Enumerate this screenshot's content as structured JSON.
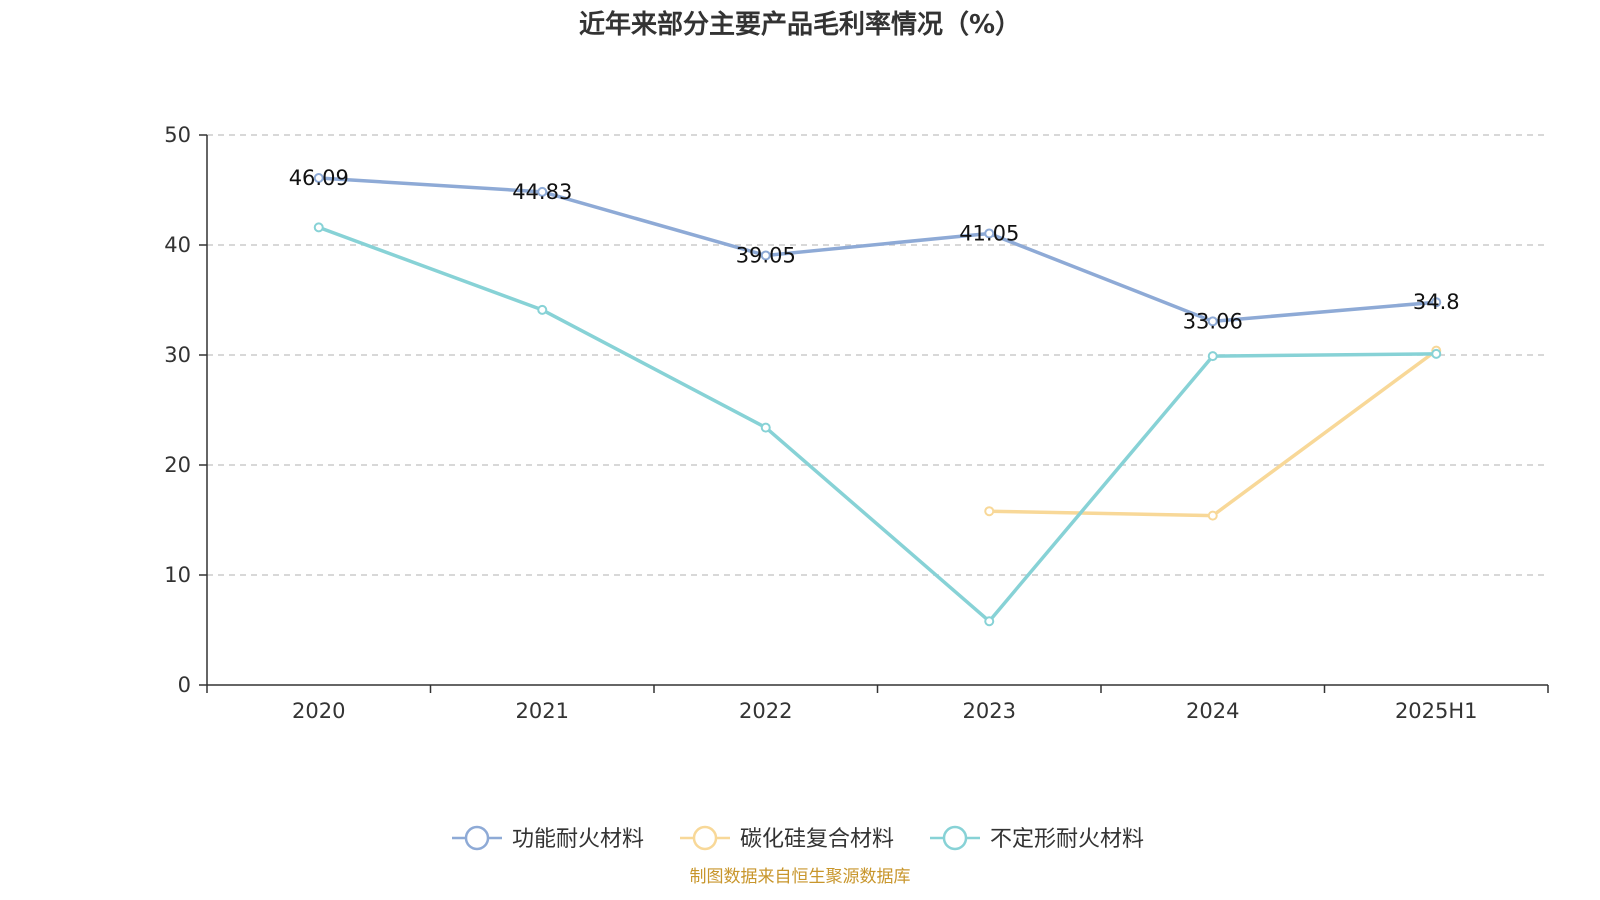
{
  "chart_data": {
    "type": "line",
    "title": "近年来部分主要产品毛利率情况（%）",
    "categories": [
      "2020",
      "2021",
      "2022",
      "2023",
      "2024",
      "2025H1"
    ],
    "ylim": [
      0,
      50
    ],
    "yticks": [
      0,
      10,
      20,
      30,
      40,
      50
    ],
    "grid": true,
    "legend_position": "bottom",
    "series": [
      {
        "name": "功能耐火材料",
        "color": "#8eaad6",
        "values": [
          46.09,
          44.83,
          39.05,
          41.05,
          33.06,
          34.8
        ],
        "labels": [
          "46.09",
          "44.83",
          "39.05",
          "41.05",
          "33.06",
          "34.8"
        ]
      },
      {
        "name": "碳化硅复合材料",
        "color": "#f8d898",
        "values": [
          null,
          null,
          null,
          15.8,
          15.4,
          30.4
        ]
      },
      {
        "name": "不定形耐火材料",
        "color": "#87d2d6",
        "values": [
          41.6,
          34.1,
          23.4,
          5.8,
          29.9,
          30.1
        ]
      }
    ]
  },
  "source": {
    "text": "制图数据来自恒生聚源数据库",
    "color": "#c8962c"
  }
}
